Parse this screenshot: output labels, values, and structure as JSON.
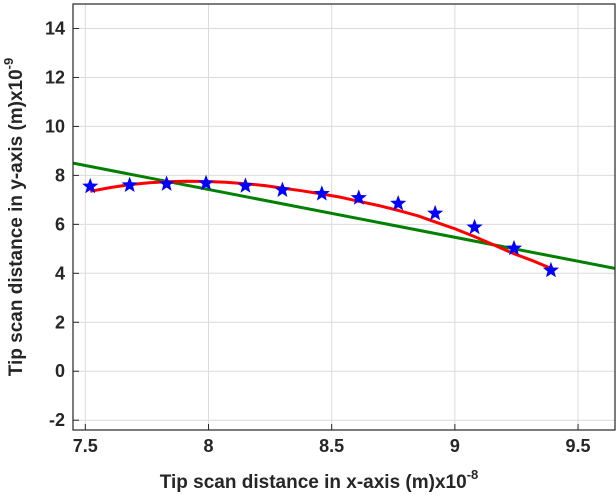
{
  "chart_data": {
    "type": "line",
    "xlabel": "Tip scan distance in x-axis (m)x10",
    "xlabel_exponent": "-8",
    "ylabel": "Tip scan distance in y-axis (m)x10",
    "ylabel_exponent": "-9",
    "xlim": [
      7.45,
      9.65
    ],
    "ylim": [
      -2.4,
      15
    ],
    "xticks": [
      "7.5",
      "8",
      "8.5",
      "9",
      "9.5"
    ],
    "xtick_values": [
      7.5,
      8,
      8.5,
      9,
      9.5
    ],
    "yticks": [
      "-2",
      "0",
      "2",
      "4",
      "6",
      "8",
      "10",
      "12",
      "14"
    ],
    "ytick_values": [
      -2,
      0,
      2,
      4,
      6,
      8,
      10,
      12,
      14
    ],
    "grid": true,
    "series": [
      {
        "style": "stars",
        "color": "#0000ff",
        "x": [
          7.52,
          7.68,
          7.83,
          7.99,
          8.15,
          8.3,
          8.46,
          8.61,
          8.77,
          8.92,
          9.08,
          9.24,
          9.39
        ],
        "y": [
          7.55,
          7.6,
          7.65,
          7.68,
          7.57,
          7.4,
          7.25,
          7.08,
          6.85,
          6.45,
          5.88,
          5.02,
          4.12
        ]
      },
      {
        "style": "line",
        "color": "#ff0000",
        "x": [
          7.52,
          7.6,
          7.68,
          7.76,
          7.83,
          7.91,
          7.99,
          8.07,
          8.15,
          8.23,
          8.3,
          8.38,
          8.46,
          8.54,
          8.61,
          8.69,
          8.77,
          8.85,
          8.92,
          9.0,
          9.08,
          9.16,
          9.24,
          9.32,
          9.39
        ],
        "y": [
          7.35,
          7.5,
          7.62,
          7.7,
          7.74,
          7.76,
          7.75,
          7.72,
          7.66,
          7.58,
          7.48,
          7.37,
          7.24,
          7.1,
          6.94,
          6.77,
          6.57,
          6.35,
          6.1,
          5.82,
          5.5,
          5.15,
          4.8,
          4.5,
          4.2
        ]
      },
      {
        "style": "line",
        "color": "#008000",
        "x": [
          7.45,
          9.65
        ],
        "y": [
          8.5,
          4.2
        ]
      }
    ]
  }
}
